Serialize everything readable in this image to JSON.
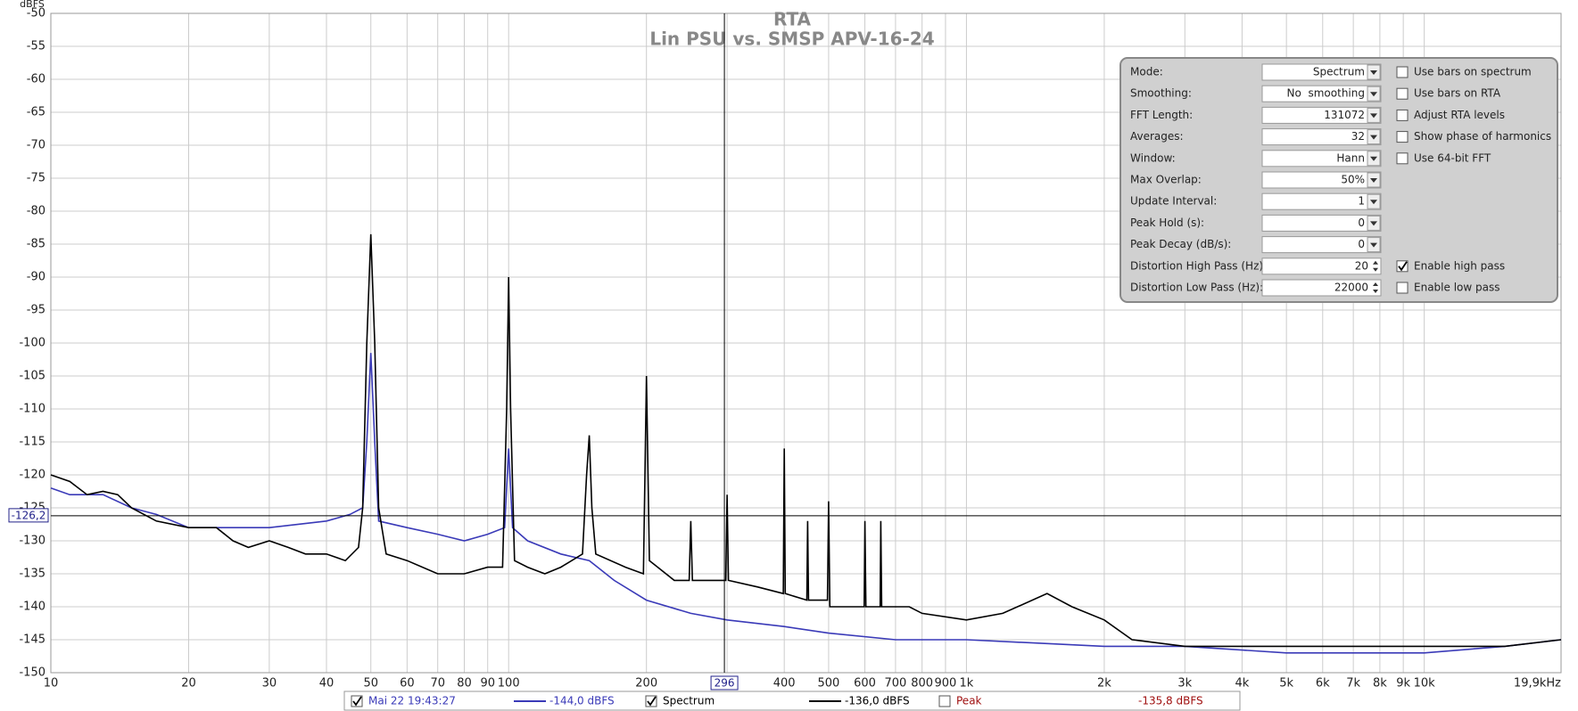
{
  "chart_data": {
    "type": "line",
    "title": "RTA",
    "subtitle": "Lin PSU vs. SMSP APV-16-24",
    "y_label": "dBFS",
    "log_x": true,
    "grid": true,
    "xlim": [
      10,
      19900
    ],
    "ylim": [
      -150,
      -50
    ],
    "yticks": [
      -50,
      -55,
      -60,
      -65,
      -70,
      -75,
      -80,
      -85,
      -90,
      -95,
      -100,
      -105,
      -110,
      -115,
      -120,
      -125,
      -130,
      -135,
      -140,
      -145,
      -150
    ],
    "xticks": [
      10,
      20,
      30,
      40,
      50,
      60,
      70,
      80,
      90,
      100,
      200,
      300,
      400,
      500,
      600,
      700,
      800,
      900,
      {
        "value": 1000,
        "label": "1k"
      },
      {
        "value": 2000,
        "label": "2k"
      },
      {
        "value": 3000,
        "label": "3k"
      },
      {
        "value": 4000,
        "label": "4k"
      },
      {
        "value": 5000,
        "label": "5k"
      },
      {
        "value": 6000,
        "label": "6k"
      },
      {
        "value": 7000,
        "label": "7k"
      },
      {
        "value": 8000,
        "label": "8k"
      },
      {
        "value": 9000,
        "label": "9k"
      },
      {
        "value": 10000,
        "label": "10k"
      },
      {
        "value": 19900,
        "label": "19,9kHz"
      }
    ],
    "cursor": {
      "x": {
        "value": 296,
        "label": "296"
      },
      "y": {
        "value": -126.2,
        "label": "-126,2"
      }
    },
    "series": [
      {
        "name": "Mai 22 19:43:27",
        "color": "#3a3ab8",
        "checked": true,
        "readout": "-144,0 dBFS",
        "x": [
          10,
          11,
          13,
          15,
          17,
          20,
          25,
          30,
          40,
          45,
          48,
          49,
          50,
          51,
          52,
          60,
          70,
          80,
          90,
          98,
          100,
          102,
          110,
          130,
          150,
          170,
          200,
          250,
          300,
          400,
          500,
          700,
          1000,
          2000,
          3000,
          5000,
          10000,
          15000,
          19900
        ],
        "values": [
          -122,
          -123,
          -123,
          -125,
          -126,
          -128,
          -128,
          -128,
          -127,
          -126,
          -125,
          -115,
          -101.5,
          -115,
          -127,
          -128,
          -129,
          -130,
          -129,
          -128,
          -116,
          -128,
          -130,
          -132,
          -133,
          -136,
          -139,
          -141,
          -142,
          -143,
          -144,
          -145,
          -145,
          -146,
          -146,
          -147,
          -147,
          -146,
          -145
        ]
      },
      {
        "name": "Spectrum",
        "color": "#000000",
        "checked": true,
        "readout": "-136,0 dBFS",
        "x": [
          10,
          11,
          12,
          13,
          14,
          15,
          17,
          20,
          23,
          25,
          27,
          30,
          33,
          36,
          40,
          44,
          47,
          48,
          49,
          50,
          51,
          52,
          54,
          60,
          70,
          80,
          90,
          97,
          99,
          100,
          101,
          103,
          110,
          120,
          130,
          145,
          148,
          150,
          152,
          155,
          180,
          197,
          200,
          203,
          230,
          248,
          250,
          252,
          280,
          298,
          300,
          302,
          350,
          398,
          400,
          402,
          448,
          450,
          452,
          497,
          500,
          503,
          550,
          598,
          600,
          603,
          648,
          650,
          653,
          700,
          750,
          800,
          1000,
          1200,
          1500,
          1700,
          2000,
          2300,
          3000,
          5000,
          10000,
          15000,
          19900
        ],
        "values": [
          -120,
          -121,
          -123,
          -122.5,
          -123,
          -125,
          -127,
          -128,
          -128,
          -130,
          -131,
          -130,
          -131,
          -132,
          -132,
          -133,
          -131,
          -125,
          -100,
          -83.5,
          -100,
          -125,
          -132,
          -133,
          -135,
          -135,
          -134,
          -134,
          -110,
          -90,
          -110,
          -133,
          -134,
          -135,
          -134,
          -132,
          -120,
          -114,
          -125,
          -132,
          -134,
          -135,
          -105,
          -133,
          -136,
          -136,
          -127,
          -136,
          -136,
          -136,
          -123,
          -136,
          -137,
          -138,
          -116,
          -138,
          -139,
          -127,
          -139,
          -139,
          -124,
          -140,
          -140,
          -140,
          -127,
          -140,
          -140,
          -127,
          -140,
          -140,
          -140,
          -141,
          -142,
          -141,
          -138,
          -140,
          -142,
          -145,
          -146,
          -146,
          -146,
          -146,
          -145
        ]
      }
    ],
    "legend_extra": {
      "name": "Peak",
      "checked": false,
      "readout": "-135,8 dBFS",
      "color": "#a01010"
    }
  },
  "panel": {
    "rows": [
      {
        "label": "Mode:",
        "value": "Spectrum",
        "control": "dropdown",
        "option": {
          "label": "Use bars on spectrum",
          "checked": false
        }
      },
      {
        "label": "Smoothing:",
        "value": "No  smoothing",
        "control": "dropdown",
        "option": {
          "label": "Use bars on RTA",
          "checked": false
        }
      },
      {
        "label": "FFT Length:",
        "value": "131072",
        "control": "dropdown",
        "option": {
          "label": "Adjust RTA levels",
          "checked": false
        }
      },
      {
        "label": "Averages:",
        "value": "32",
        "control": "dropdown",
        "option": {
          "label": "Show phase of harmonics",
          "checked": false
        }
      },
      {
        "label": "Window:",
        "value": "Hann",
        "control": "dropdown",
        "option": {
          "label": "Use 64-bit FFT",
          "checked": false
        }
      },
      {
        "label": "Max Overlap:",
        "value": "50%",
        "control": "dropdown"
      },
      {
        "label": "Update Interval:",
        "value": "1",
        "control": "dropdown"
      },
      {
        "label": "Peak Hold (s):",
        "value": "0",
        "control": "dropdown"
      },
      {
        "label": "Peak Decay (dB/s):",
        "value": "0",
        "control": "dropdown"
      },
      {
        "label": "Distortion High Pass (Hz):",
        "value": "20",
        "control": "spin",
        "option": {
          "label": "Enable high pass",
          "checked": true
        }
      },
      {
        "label": "Distortion Low Pass (Hz):",
        "value": "22000",
        "control": "spin",
        "option": {
          "label": "Enable low pass",
          "checked": false
        }
      }
    ]
  }
}
